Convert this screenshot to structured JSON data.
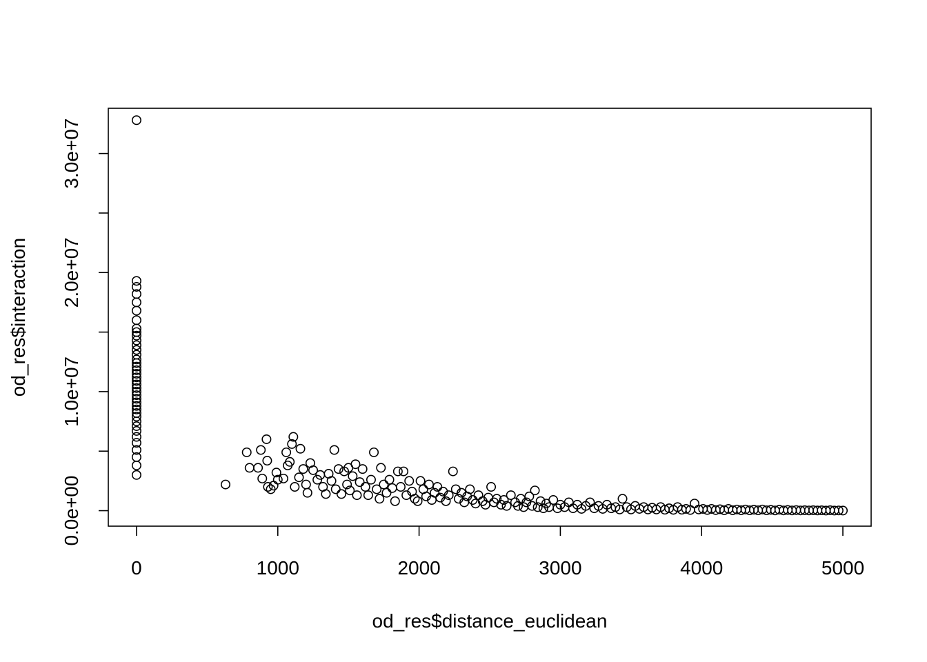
{
  "chart_data": {
    "type": "scatter",
    "title": "",
    "xlabel": "od_res$distance_euclidean",
    "ylabel": "od_res$interaction",
    "xlim": [
      -200,
      5200
    ],
    "ylim": [
      -1300000,
      33800000
    ],
    "x_ticks": [
      0,
      1000,
      2000,
      3000,
      4000,
      5000
    ],
    "x_tick_labels": [
      "0",
      "1000",
      "2000",
      "3000",
      "4000",
      "5000"
    ],
    "y_ticks": [
      0,
      5000000,
      10000000,
      15000000,
      20000000,
      25000000,
      30000000
    ],
    "y_tick_labels": [
      "0.0e+00",
      "",
      "1.0e+07",
      "",
      "2.0e+07",
      "",
      "3.0e+07"
    ],
    "grid": false,
    "legend": "none",
    "marker": "open-circle",
    "series": [
      {
        "points": [
          [
            0,
            32800000
          ],
          [
            0,
            19300000
          ],
          [
            0,
            18800000
          ],
          [
            0,
            18200000
          ],
          [
            0,
            17500000
          ],
          [
            0,
            16800000
          ],
          [
            0,
            16000000
          ],
          [
            0,
            15300000
          ],
          [
            0,
            15000000
          ],
          [
            0,
            14700000
          ],
          [
            0,
            14300000
          ],
          [
            0,
            13900000
          ],
          [
            0,
            13500000
          ],
          [
            0,
            13100000
          ],
          [
            0,
            12700000
          ],
          [
            0,
            12400000
          ],
          [
            0,
            12100000
          ],
          [
            0,
            11800000
          ],
          [
            0,
            11500000
          ],
          [
            0,
            11200000
          ],
          [
            0,
            10900000
          ],
          [
            0,
            10600000
          ],
          [
            0,
            10300000
          ],
          [
            0,
            10000000
          ],
          [
            0,
            9700000
          ],
          [
            0,
            9400000
          ],
          [
            0,
            9100000
          ],
          [
            0,
            8800000
          ],
          [
            0,
            8500000
          ],
          [
            0,
            8200000
          ],
          [
            0,
            7900000
          ],
          [
            0,
            7500000
          ],
          [
            0,
            7100000
          ],
          [
            0,
            6700000
          ],
          [
            0,
            6200000
          ],
          [
            0,
            5700000
          ],
          [
            0,
            5100000
          ],
          [
            0,
            4500000
          ],
          [
            0,
            3800000
          ],
          [
            0,
            3000000
          ],
          [
            630,
            2200000
          ],
          [
            780,
            4900000
          ],
          [
            800,
            3600000
          ],
          [
            860,
            3600000
          ],
          [
            880,
            5100000
          ],
          [
            890,
            2700000
          ],
          [
            920,
            6000000
          ],
          [
            925,
            4200000
          ],
          [
            930,
            2000000
          ],
          [
            950,
            1800000
          ],
          [
            970,
            2100000
          ],
          [
            990,
            3200000
          ],
          [
            1000,
            2600000
          ],
          [
            1040,
            2700000
          ],
          [
            1060,
            4900000
          ],
          [
            1070,
            3800000
          ],
          [
            1085,
            4100000
          ],
          [
            1100,
            5600000
          ],
          [
            1110,
            6200000
          ],
          [
            1120,
            2000000
          ],
          [
            1150,
            2800000
          ],
          [
            1160,
            5200000
          ],
          [
            1180,
            3500000
          ],
          [
            1200,
            2200000
          ],
          [
            1210,
            1500000
          ],
          [
            1230,
            4000000
          ],
          [
            1250,
            3400000
          ],
          [
            1280,
            2600000
          ],
          [
            1300,
            3000000
          ],
          [
            1320,
            2000000
          ],
          [
            1340,
            1400000
          ],
          [
            1360,
            3100000
          ],
          [
            1380,
            2500000
          ],
          [
            1400,
            5100000
          ],
          [
            1410,
            1800000
          ],
          [
            1430,
            3500000
          ],
          [
            1450,
            1400000
          ],
          [
            1470,
            3300000
          ],
          [
            1490,
            2200000
          ],
          [
            1500,
            3600000
          ],
          [
            1510,
            1700000
          ],
          [
            1530,
            2900000
          ],
          [
            1550,
            3900000
          ],
          [
            1560,
            1300000
          ],
          [
            1580,
            2400000
          ],
          [
            1600,
            3500000
          ],
          [
            1620,
            2000000
          ],
          [
            1640,
            1300000
          ],
          [
            1660,
            2600000
          ],
          [
            1680,
            4900000
          ],
          [
            1700,
            1800000
          ],
          [
            1720,
            1000000
          ],
          [
            1730,
            3600000
          ],
          [
            1750,
            2200000
          ],
          [
            1770,
            1500000
          ],
          [
            1790,
            2600000
          ],
          [
            1810,
            1900000
          ],
          [
            1830,
            800000
          ],
          [
            1850,
            3300000
          ],
          [
            1870,
            2000000
          ],
          [
            1890,
            3300000
          ],
          [
            1910,
            1300000
          ],
          [
            1930,
            2500000
          ],
          [
            1950,
            1600000
          ],
          [
            1970,
            1000000
          ],
          [
            1990,
            800000
          ],
          [
            2010,
            2500000
          ],
          [
            2030,
            1800000
          ],
          [
            2050,
            1200000
          ],
          [
            2070,
            2200000
          ],
          [
            2090,
            900000
          ],
          [
            2110,
            1500000
          ],
          [
            2130,
            2000000
          ],
          [
            2150,
            1100000
          ],
          [
            2170,
            1600000
          ],
          [
            2190,
            800000
          ],
          [
            2210,
            1300000
          ],
          [
            2240,
            3300000
          ],
          [
            2260,
            1800000
          ],
          [
            2280,
            1000000
          ],
          [
            2300,
            1500000
          ],
          [
            2320,
            700000
          ],
          [
            2340,
            1200000
          ],
          [
            2360,
            1800000
          ],
          [
            2380,
            900000
          ],
          [
            2400,
            600000
          ],
          [
            2420,
            1300000
          ],
          [
            2450,
            800000
          ],
          [
            2470,
            500000
          ],
          [
            2490,
            1100000
          ],
          [
            2510,
            2000000
          ],
          [
            2530,
            700000
          ],
          [
            2550,
            1000000
          ],
          [
            2580,
            500000
          ],
          [
            2600,
            900000
          ],
          [
            2620,
            400000
          ],
          [
            2650,
            1300000
          ],
          [
            2680,
            700000
          ],
          [
            2700,
            400000
          ],
          [
            2720,
            1000000
          ],
          [
            2740,
            300000
          ],
          [
            2760,
            700000
          ],
          [
            2780,
            1200000
          ],
          [
            2800,
            400000
          ],
          [
            2820,
            1700000
          ],
          [
            2840,
            300000
          ],
          [
            2860,
            800000
          ],
          [
            2880,
            200000
          ],
          [
            2900,
            600000
          ],
          [
            2920,
            300000
          ],
          [
            2950,
            900000
          ],
          [
            2980,
            200000
          ],
          [
            3000,
            500000
          ],
          [
            3030,
            300000
          ],
          [
            3060,
            700000
          ],
          [
            3090,
            200000
          ],
          [
            3120,
            500000
          ],
          [
            3150,
            150000
          ],
          [
            3180,
            400000
          ],
          [
            3210,
            700000
          ],
          [
            3240,
            200000
          ],
          [
            3270,
            400000
          ],
          [
            3300,
            150000
          ],
          [
            3330,
            500000
          ],
          [
            3360,
            200000
          ],
          [
            3390,
            300000
          ],
          [
            3420,
            100000
          ],
          [
            3440,
            1000000
          ],
          [
            3470,
            300000
          ],
          [
            3500,
            100000
          ],
          [
            3530,
            400000
          ],
          [
            3560,
            150000
          ],
          [
            3590,
            300000
          ],
          [
            3620,
            100000
          ],
          [
            3650,
            250000
          ],
          [
            3680,
            100000
          ],
          [
            3710,
            300000
          ],
          [
            3740,
            80000
          ],
          [
            3770,
            200000
          ],
          [
            3800,
            70000
          ],
          [
            3830,
            300000
          ],
          [
            3860,
            80000
          ],
          [
            3890,
            150000
          ],
          [
            3920,
            60000
          ],
          [
            3950,
            600000
          ],
          [
            3980,
            100000
          ],
          [
            4010,
            150000
          ],
          [
            4040,
            60000
          ],
          [
            4070,
            150000
          ],
          [
            4100,
            50000
          ],
          [
            4130,
            120000
          ],
          [
            4160,
            40000
          ],
          [
            4190,
            150000
          ],
          [
            4220,
            40000
          ],
          [
            4250,
            100000
          ],
          [
            4280,
            40000
          ],
          [
            4310,
            100000
          ],
          [
            4340,
            30000
          ],
          [
            4370,
            80000
          ],
          [
            4400,
            30000
          ],
          [
            4430,
            100000
          ],
          [
            4460,
            30000
          ],
          [
            4490,
            70000
          ],
          [
            4520,
            20000
          ],
          [
            4550,
            80000
          ],
          [
            4580,
            20000
          ],
          [
            4610,
            60000
          ],
          [
            4640,
            20000
          ],
          [
            4670,
            50000
          ],
          [
            4700,
            20000
          ],
          [
            4730,
            40000
          ],
          [
            4760,
            20000
          ],
          [
            4790,
            40000
          ],
          [
            4820,
            15000
          ],
          [
            4850,
            30000
          ],
          [
            4880,
            10000
          ],
          [
            4910,
            40000
          ],
          [
            4940,
            10000
          ],
          [
            4970,
            20000
          ],
          [
            5000,
            10000
          ]
        ]
      }
    ]
  }
}
